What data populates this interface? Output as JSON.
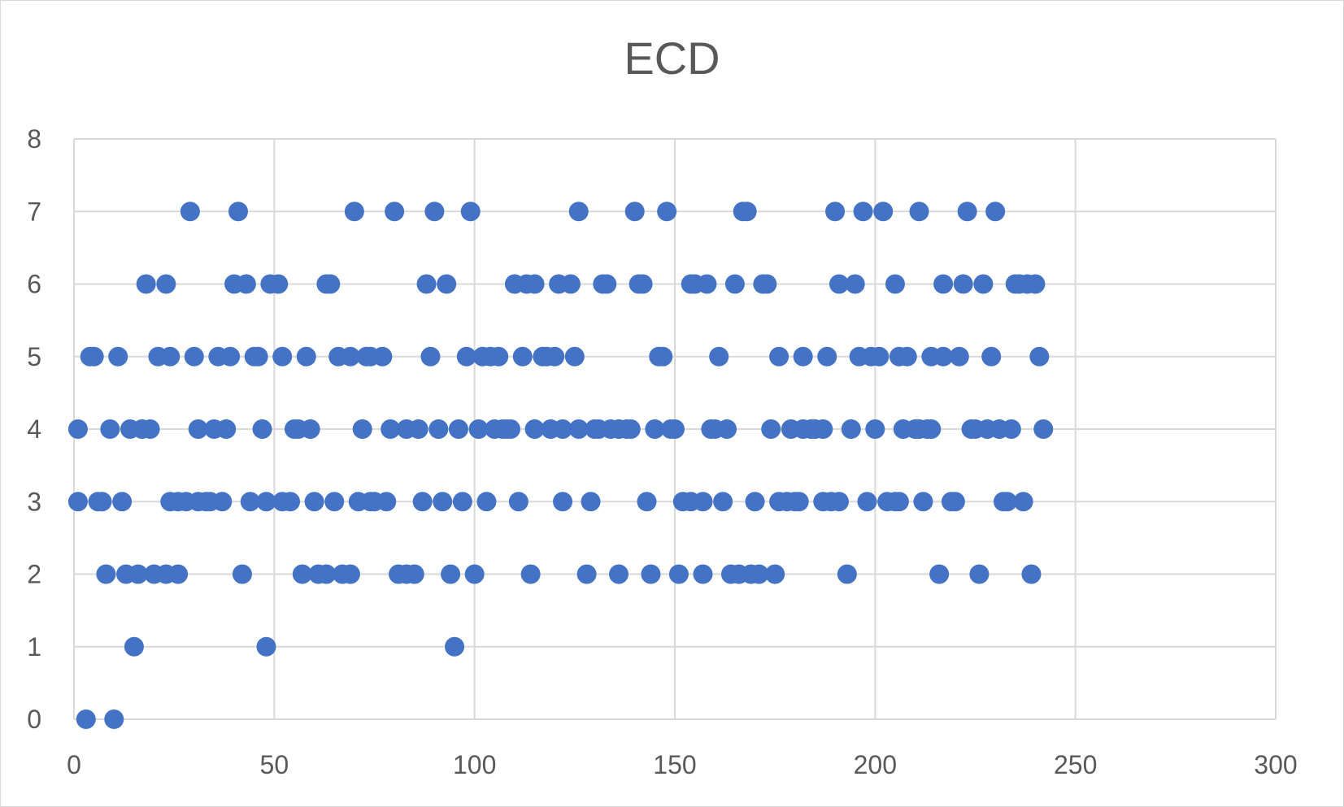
{
  "chart_data": {
    "type": "scatter",
    "title": "ECD",
    "xlabel": "",
    "ylabel": "",
    "xlim": [
      0,
      300
    ],
    "ylim": [
      0,
      8
    ],
    "x_ticks": [
      0,
      50,
      100,
      150,
      200,
      250,
      300
    ],
    "y_ticks": [
      0,
      1,
      2,
      3,
      4,
      5,
      6,
      7,
      8
    ],
    "grid": true,
    "legend": "none",
    "marker_color": "#4472c4",
    "series": [
      {
        "points": [
          [
            3,
            0
          ],
          [
            10,
            0
          ],
          [
            15,
            1
          ],
          [
            48,
            1
          ],
          [
            95,
            1
          ],
          [
            8,
            2
          ],
          [
            13,
            2
          ],
          [
            16,
            2
          ],
          [
            20,
            2
          ],
          [
            23,
            2
          ],
          [
            26,
            2
          ],
          [
            42,
            2
          ],
          [
            57,
            2
          ],
          [
            61,
            2
          ],
          [
            63,
            2
          ],
          [
            67,
            2
          ],
          [
            69,
            2
          ],
          [
            81,
            2
          ],
          [
            83,
            2
          ],
          [
            85,
            2
          ],
          [
            94,
            2
          ],
          [
            100,
            2
          ],
          [
            114,
            2
          ],
          [
            128,
            2
          ],
          [
            136,
            2
          ],
          [
            144,
            2
          ],
          [
            151,
            2
          ],
          [
            157,
            2
          ],
          [
            164,
            2
          ],
          [
            166,
            2
          ],
          [
            169,
            2
          ],
          [
            171,
            2
          ],
          [
            175,
            2
          ],
          [
            193,
            2
          ],
          [
            216,
            2
          ],
          [
            226,
            2
          ],
          [
            239,
            2
          ],
          [
            1,
            3
          ],
          [
            6,
            3
          ],
          [
            7,
            3
          ],
          [
            12,
            3
          ],
          [
            24,
            3
          ],
          [
            26,
            3
          ],
          [
            28,
            3
          ],
          [
            31,
            3
          ],
          [
            33,
            3
          ],
          [
            34,
            3
          ],
          [
            37,
            3
          ],
          [
            44,
            3
          ],
          [
            48,
            3
          ],
          [
            52,
            3
          ],
          [
            54,
            3
          ],
          [
            60,
            3
          ],
          [
            65,
            3
          ],
          [
            71,
            3
          ],
          [
            74,
            3
          ],
          [
            75,
            3
          ],
          [
            78,
            3
          ],
          [
            87,
            3
          ],
          [
            92,
            3
          ],
          [
            97,
            3
          ],
          [
            103,
            3
          ],
          [
            111,
            3
          ],
          [
            122,
            3
          ],
          [
            129,
            3
          ],
          [
            143,
            3
          ],
          [
            152,
            3
          ],
          [
            154,
            3
          ],
          [
            157,
            3
          ],
          [
            162,
            3
          ],
          [
            170,
            3
          ],
          [
            176,
            3
          ],
          [
            178,
            3
          ],
          [
            180,
            3
          ],
          [
            181,
            3
          ],
          [
            187,
            3
          ],
          [
            189,
            3
          ],
          [
            191,
            3
          ],
          [
            198,
            3
          ],
          [
            203,
            3
          ],
          [
            205,
            3
          ],
          [
            206,
            3
          ],
          [
            212,
            3
          ],
          [
            219,
            3
          ],
          [
            220,
            3
          ],
          [
            232,
            3
          ],
          [
            233,
            3
          ],
          [
            237,
            3
          ],
          [
            1,
            4
          ],
          [
            9,
            4
          ],
          [
            14,
            4
          ],
          [
            17,
            4
          ],
          [
            19,
            4
          ],
          [
            31,
            4
          ],
          [
            35,
            4
          ],
          [
            38,
            4
          ],
          [
            47,
            4
          ],
          [
            55,
            4
          ],
          [
            56,
            4
          ],
          [
            59,
            4
          ],
          [
            72,
            4
          ],
          [
            79,
            4
          ],
          [
            83,
            4
          ],
          [
            86,
            4
          ],
          [
            91,
            4
          ],
          [
            96,
            4
          ],
          [
            101,
            4
          ],
          [
            105,
            4
          ],
          [
            107,
            4
          ],
          [
            108,
            4
          ],
          [
            109,
            4
          ],
          [
            115,
            4
          ],
          [
            119,
            4
          ],
          [
            122,
            4
          ],
          [
            126,
            4
          ],
          [
            130,
            4
          ],
          [
            131,
            4
          ],
          [
            134,
            4
          ],
          [
            136,
            4
          ],
          [
            138,
            4
          ],
          [
            139,
            4
          ],
          [
            145,
            4
          ],
          [
            149,
            4
          ],
          [
            150,
            4
          ],
          [
            159,
            4
          ],
          [
            160,
            4
          ],
          [
            163,
            4
          ],
          [
            174,
            4
          ],
          [
            179,
            4
          ],
          [
            182,
            4
          ],
          [
            184,
            4
          ],
          [
            185,
            4
          ],
          [
            187,
            4
          ],
          [
            194,
            4
          ],
          [
            200,
            4
          ],
          [
            207,
            4
          ],
          [
            210,
            4
          ],
          [
            211,
            4
          ],
          [
            213,
            4
          ],
          [
            214,
            4
          ],
          [
            224,
            4
          ],
          [
            225,
            4
          ],
          [
            228,
            4
          ],
          [
            231,
            4
          ],
          [
            234,
            4
          ],
          [
            242,
            4
          ],
          [
            4,
            5
          ],
          [
            5,
            5
          ],
          [
            11,
            5
          ],
          [
            21,
            5
          ],
          [
            24,
            5
          ],
          [
            30,
            5
          ],
          [
            36,
            5
          ],
          [
            39,
            5
          ],
          [
            45,
            5
          ],
          [
            46,
            5
          ],
          [
            52,
            5
          ],
          [
            58,
            5
          ],
          [
            66,
            5
          ],
          [
            69,
            5
          ],
          [
            73,
            5
          ],
          [
            74,
            5
          ],
          [
            77,
            5
          ],
          [
            89,
            5
          ],
          [
            98,
            5
          ],
          [
            102,
            5
          ],
          [
            104,
            5
          ],
          [
            106,
            5
          ],
          [
            112,
            5
          ],
          [
            117,
            5
          ],
          [
            118,
            5
          ],
          [
            120,
            5
          ],
          [
            125,
            5
          ],
          [
            146,
            5
          ],
          [
            147,
            5
          ],
          [
            161,
            5
          ],
          [
            176,
            5
          ],
          [
            182,
            5
          ],
          [
            188,
            5
          ],
          [
            196,
            5
          ],
          [
            199,
            5
          ],
          [
            201,
            5
          ],
          [
            206,
            5
          ],
          [
            208,
            5
          ],
          [
            214,
            5
          ],
          [
            217,
            5
          ],
          [
            221,
            5
          ],
          [
            229,
            5
          ],
          [
            241,
            5
          ],
          [
            18,
            6
          ],
          [
            23,
            6
          ],
          [
            40,
            6
          ],
          [
            43,
            6
          ],
          [
            49,
            6
          ],
          [
            51,
            6
          ],
          [
            63,
            6
          ],
          [
            64,
            6
          ],
          [
            88,
            6
          ],
          [
            93,
            6
          ],
          [
            110,
            6
          ],
          [
            113,
            6
          ],
          [
            115,
            6
          ],
          [
            121,
            6
          ],
          [
            124,
            6
          ],
          [
            132,
            6
          ],
          [
            133,
            6
          ],
          [
            141,
            6
          ],
          [
            142,
            6
          ],
          [
            154,
            6
          ],
          [
            155,
            6
          ],
          [
            158,
            6
          ],
          [
            165,
            6
          ],
          [
            172,
            6
          ],
          [
            173,
            6
          ],
          [
            191,
            6
          ],
          [
            195,
            6
          ],
          [
            205,
            6
          ],
          [
            217,
            6
          ],
          [
            222,
            6
          ],
          [
            227,
            6
          ],
          [
            235,
            6
          ],
          [
            236,
            6
          ],
          [
            238,
            6
          ],
          [
            240,
            6
          ],
          [
            29,
            7
          ],
          [
            41,
            7
          ],
          [
            70,
            7
          ],
          [
            80,
            7
          ],
          [
            90,
            7
          ],
          [
            99,
            7
          ],
          [
            126,
            7
          ],
          [
            140,
            7
          ],
          [
            148,
            7
          ],
          [
            167,
            7
          ],
          [
            168,
            7
          ],
          [
            190,
            7
          ],
          [
            197,
            7
          ],
          [
            202,
            7
          ],
          [
            211,
            7
          ],
          [
            223,
            7
          ],
          [
            230,
            7
          ]
        ]
      }
    ]
  }
}
